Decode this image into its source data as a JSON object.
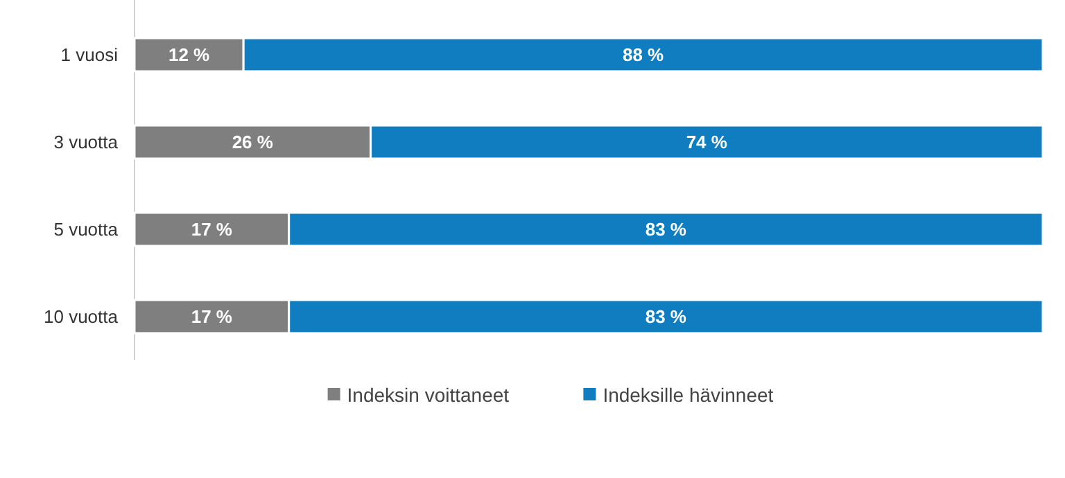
{
  "chart_data": {
    "type": "bar",
    "orientation": "horizontal",
    "stacked": true,
    "categories": [
      "1 vuosi",
      "3 vuotta",
      "5 vuotta",
      "10 vuotta"
    ],
    "xlim": [
      0,
      100
    ],
    "tick_labels": "y",
    "legend": "bottom",
    "series": [
      {
        "name": "Indeksin voittaneet",
        "color": "#7f7f7f",
        "values": [
          12,
          26,
          17,
          17
        ],
        "value_labels": [
          "12 %",
          "26 %",
          "17 %",
          "17 %"
        ]
      },
      {
        "name": "Indeksille hävinneet",
        "color": "#0f7dc0",
        "values": [
          88,
          74,
          83,
          83
        ],
        "value_labels": [
          "88 %",
          "74 %",
          "83 %",
          "83 %"
        ]
      }
    ]
  }
}
